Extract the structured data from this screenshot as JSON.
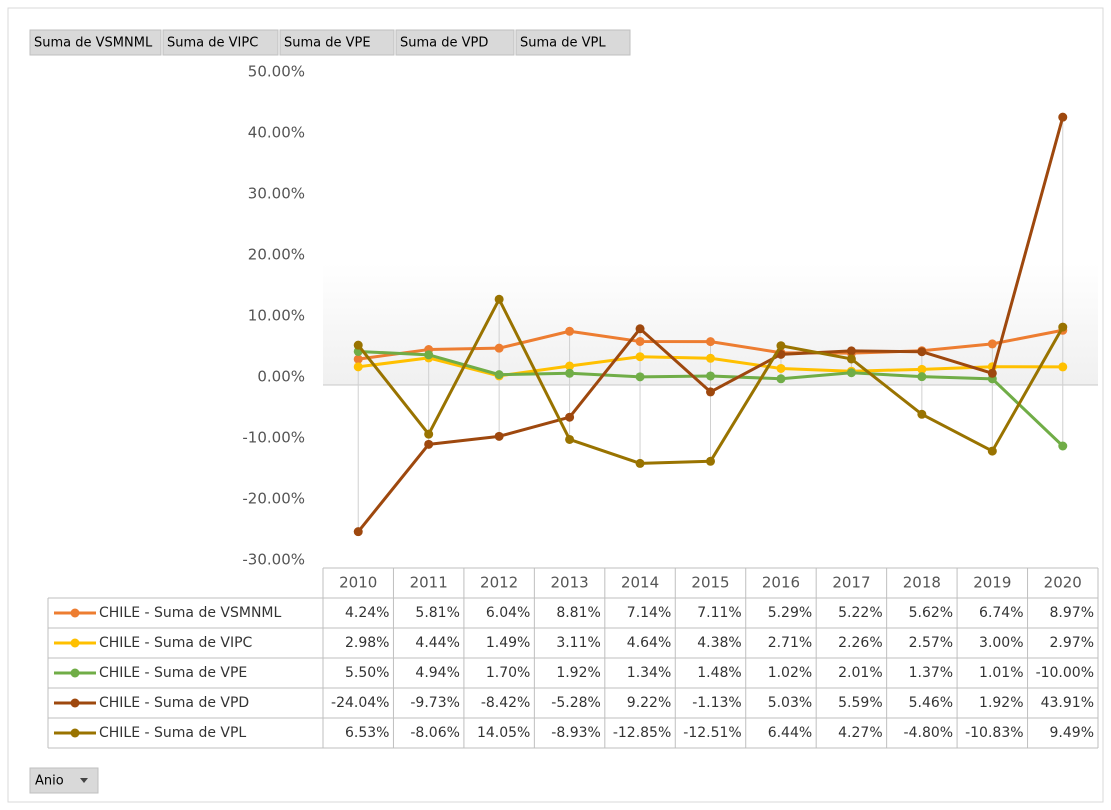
{
  "field_buttons": [
    "Suma de VSMNML",
    "Suma de VIPC",
    "Suma de VPE",
    "Suma de VPD",
    "Suma de VPL"
  ],
  "row_field_button": "Anio",
  "chart_data": {
    "type": "line",
    "categories": [
      "2010",
      "2011",
      "2012",
      "2013",
      "2014",
      "2015",
      "2016",
      "2017",
      "2018",
      "2019",
      "2020"
    ],
    "ylim": [
      -30,
      50
    ],
    "yticks": [
      {
        "value": -30,
        "label": "-30.00%"
      },
      {
        "value": -20,
        "label": "-20.00%"
      },
      {
        "value": -10,
        "label": "-10.00%"
      },
      {
        "value": 0,
        "label": "0.00%"
      },
      {
        "value": 10,
        "label": "10.00%"
      },
      {
        "value": 20,
        "label": "20.00%"
      },
      {
        "value": 30,
        "label": "30.00%"
      },
      {
        "value": 40,
        "label": "40.00%"
      },
      {
        "value": 50,
        "label": "50.00%"
      }
    ],
    "grid": false,
    "series": [
      {
        "name": "CHILE - Suma de VSMNML",
        "color": "#ED7D31",
        "values": [
          4.24,
          5.81,
          6.04,
          8.81,
          7.14,
          7.11,
          5.29,
          5.22,
          5.62,
          6.74,
          8.97
        ],
        "value_labels": [
          "4.24%",
          "5.81%",
          "6.04%",
          "8.81%",
          "7.14%",
          "7.11%",
          "5.29%",
          "5.22%",
          "5.62%",
          "6.74%",
          "8.97%"
        ]
      },
      {
        "name": "CHILE - Suma de VIPC",
        "color": "#FFC000",
        "values": [
          2.98,
          4.44,
          1.49,
          3.11,
          4.64,
          4.38,
          2.71,
          2.26,
          2.57,
          3.0,
          2.97
        ],
        "value_labels": [
          "2.98%",
          "4.44%",
          "1.49%",
          "3.11%",
          "4.64%",
          "4.38%",
          "2.71%",
          "2.26%",
          "2.57%",
          "3.00%",
          "2.97%"
        ]
      },
      {
        "name": "CHILE - Suma de VPE",
        "color": "#70AD47",
        "values": [
          5.5,
          4.94,
          1.7,
          1.92,
          1.34,
          1.48,
          1.02,
          2.01,
          1.37,
          1.01,
          -10.0
        ],
        "value_labels": [
          "5.50%",
          "4.94%",
          "1.70%",
          "1.92%",
          "1.34%",
          "1.48%",
          "1.02%",
          "2.01%",
          "1.37%",
          "1.01%",
          "-10.00%"
        ]
      },
      {
        "name": "CHILE - Suma de VPD",
        "color": "#9E480E",
        "values": [
          -24.04,
          -9.73,
          -8.42,
          -5.28,
          9.22,
          -1.13,
          5.03,
          5.59,
          5.46,
          1.92,
          43.91
        ],
        "value_labels": [
          "-24.04%",
          "-9.73%",
          "-8.42%",
          "-5.28%",
          "9.22%",
          "-1.13%",
          "5.03%",
          "5.59%",
          "5.46%",
          "1.92%",
          "43.91%"
        ]
      },
      {
        "name": "CHILE - Suma de VPL",
        "color": "#997300",
        "values": [
          6.53,
          -8.06,
          14.05,
          -8.93,
          -12.85,
          -12.51,
          6.44,
          4.27,
          -4.8,
          -10.83,
          9.49
        ],
        "value_labels": [
          "6.53%",
          "-8.06%",
          "14.05%",
          "-8.93%",
          "-12.85%",
          "-12.51%",
          "6.44%",
          "4.27%",
          "-4.80%",
          "-10.83%",
          "9.49%"
        ]
      }
    ]
  }
}
